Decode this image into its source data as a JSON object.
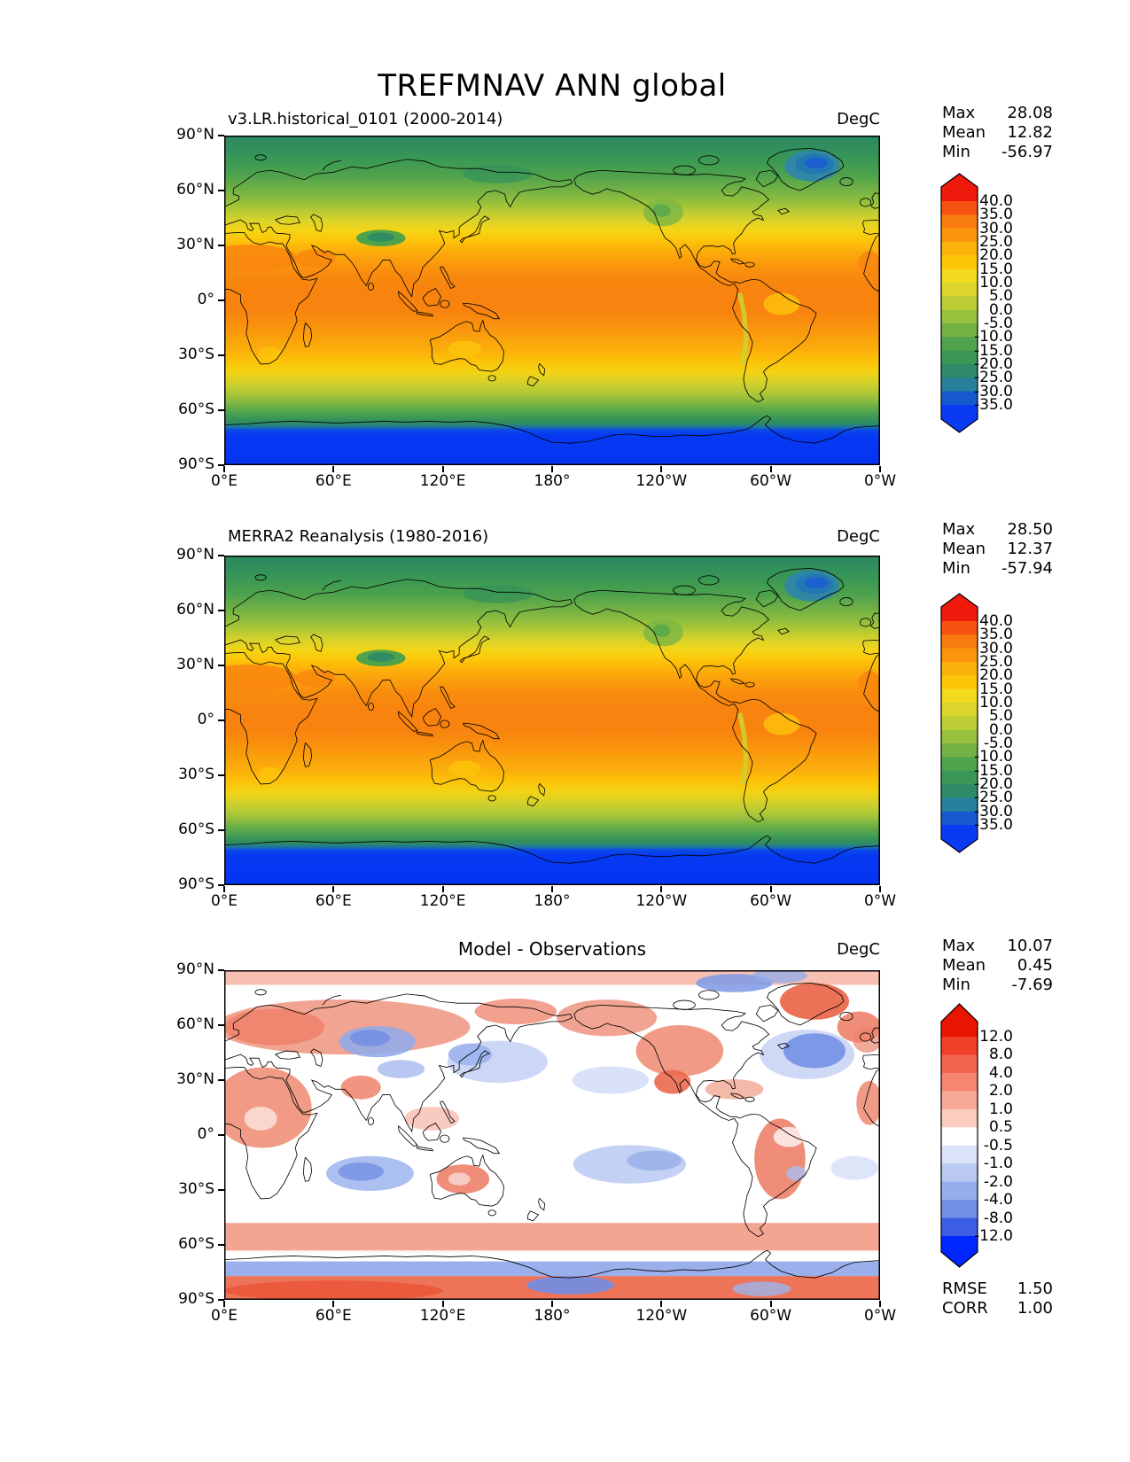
{
  "title": "TREFMNAV ANN global",
  "panels": [
    {
      "subtitle": "v3.LR.historical_0101 (2000-2014)",
      "units": "DegC",
      "stats": [
        {
          "label": "Max",
          "value": "28.08"
        },
        {
          "label": "Mean",
          "value": "12.82"
        },
        {
          "label": "Min",
          "value": "-56.97"
        }
      ],
      "yticks": [
        "90°N",
        "60°N",
        "30°N",
        "0°",
        "30°S",
        "60°S",
        "90°S"
      ],
      "xticks": [
        "0°E",
        "60°E",
        "120°E",
        "180°",
        "120°W",
        "60°W",
        "0°W"
      ],
      "colorbar_ticks": [
        "40.0",
        "35.0",
        "30.0",
        "25.0",
        "20.0",
        "15.0",
        "10.0",
        "5.0",
        "0.0",
        "-5.0",
        "-10.0",
        "-15.0",
        "-20.0",
        "-25.0",
        "-30.0",
        "-35.0"
      ]
    },
    {
      "subtitle": "MERRA2 Reanalysis (1980-2016)",
      "units": "DegC",
      "stats": [
        {
          "label": "Max",
          "value": "28.50"
        },
        {
          "label": "Mean",
          "value": "12.37"
        },
        {
          "label": "Min",
          "value": "-57.94"
        }
      ],
      "yticks": [
        "90°N",
        "60°N",
        "30°N",
        "0°",
        "30°S",
        "60°S",
        "90°S"
      ],
      "xticks": [
        "0°E",
        "60°E",
        "120°E",
        "180°",
        "120°W",
        "60°W",
        "0°W"
      ],
      "colorbar_ticks": [
        "40.0",
        "35.0",
        "30.0",
        "25.0",
        "20.0",
        "15.0",
        "10.0",
        "5.0",
        "0.0",
        "-5.0",
        "-10.0",
        "-15.0",
        "-20.0",
        "-25.0",
        "-30.0",
        "-35.0"
      ]
    },
    {
      "subtitle": "Model - Observations",
      "units": "DegC",
      "stats": [
        {
          "label": "Max",
          "value": "10.07"
        },
        {
          "label": "Mean",
          "value": "0.45"
        },
        {
          "label": "Min",
          "value": "-7.69"
        }
      ],
      "yticks": [
        "90°N",
        "60°N",
        "30°N",
        "0°",
        "30°S",
        "60°S",
        "90°S"
      ],
      "xticks": [
        "0°E",
        "60°E",
        "120°E",
        "180°",
        "120°W",
        "60°W",
        "0°W"
      ],
      "colorbar_ticks": [
        "12.0",
        "8.0",
        "4.0",
        "2.0",
        "1.0",
        "0.5",
        "-0.5",
        "-1.0",
        "-2.0",
        "-4.0",
        "-8.0",
        "-12.0"
      ],
      "extra_stats": [
        {
          "label": "RMSE",
          "value": "1.50"
        },
        {
          "label": "CORR",
          "value": "1.00"
        }
      ]
    }
  ],
  "chart_data": [
    {
      "type": "heatmap",
      "panel": "top",
      "title": "v3.LR.historical_0101 (2000-2014)",
      "units": "DegC",
      "projection": "equirectangular world map, longitude 0°E to 0°W (360°), latitude 90°N to 90°S",
      "x_axis": {
        "ticks": [
          "0°E",
          "60°E",
          "120°E",
          "180°",
          "120°W",
          "60°W",
          "0°W"
        ],
        "range_deg_east": [
          0,
          360
        ]
      },
      "y_axis": {
        "ticks": [
          "90°N",
          "60°N",
          "30°N",
          "0°",
          "30°S",
          "60°S",
          "90°S"
        ],
        "range_lat": [
          -90,
          90
        ]
      },
      "stats": {
        "max": 28.08,
        "mean": 12.82,
        "min": -56.97
      },
      "colorbar": {
        "extend": "both",
        "boundaries": [
          40,
          35,
          30,
          25,
          20,
          15,
          10,
          5,
          0,
          -5,
          -10,
          -15,
          -20,
          -25,
          -30,
          -35
        ],
        "colors": [
          "#f01a0c",
          "#f65310",
          "#f97c0e",
          "#fb960c",
          "#fcb20a",
          "#fdc709",
          "#f2da1e",
          "#dcd52d",
          "#bccd36",
          "#98c23d",
          "#73b245",
          "#50a34d",
          "#3b9755",
          "#2f8a69",
          "#27809c",
          "#1659cf",
          "#0a3af2"
        ]
      },
      "description": "Annual-mean 2m minimum air temperature field: warm orange band in tropics, green mid/high latitudes, deep blue over Antarctica and Greenland."
    },
    {
      "type": "heatmap",
      "panel": "middle",
      "title": "MERRA2 Reanalysis (1980-2016)",
      "units": "DegC",
      "projection": "equirectangular world map, longitude 0°E to 0°W (360°), latitude 90°N to 90°S",
      "x_axis": {
        "ticks": [
          "0°E",
          "60°E",
          "120°E",
          "180°",
          "120°W",
          "60°W",
          "0°W"
        ],
        "range_deg_east": [
          0,
          360
        ]
      },
      "y_axis": {
        "ticks": [
          "90°N",
          "60°N",
          "30°N",
          "0°",
          "30°S",
          "60°S",
          "90°S"
        ],
        "range_lat": [
          -90,
          90
        ]
      },
      "stats": {
        "max": 28.5,
        "mean": 12.37,
        "min": -57.94
      },
      "colorbar": {
        "extend": "both",
        "boundaries": [
          40,
          35,
          30,
          25,
          20,
          15,
          10,
          5,
          0,
          -5,
          -10,
          -15,
          -20,
          -25,
          -30,
          -35
        ],
        "colors": [
          "#f01a0c",
          "#f65310",
          "#f97c0e",
          "#fb960c",
          "#fcb20a",
          "#fdc709",
          "#f2da1e",
          "#dcd52d",
          "#bccd36",
          "#98c23d",
          "#73b245",
          "#50a34d",
          "#3b9755",
          "#2f8a69",
          "#27809c",
          "#1659cf",
          "#0a3af2"
        ]
      },
      "description": "Reanalysis temperature field, visually nearly identical to the model panel."
    },
    {
      "type": "heatmap",
      "panel": "bottom",
      "title": "Model - Observations",
      "units": "DegC",
      "projection": "equirectangular world map, longitude 0°E to 0°W (360°), latitude 90°N to 90°S",
      "x_axis": {
        "ticks": [
          "0°E",
          "60°E",
          "120°E",
          "180°",
          "120°W",
          "60°W",
          "0°W"
        ],
        "range_deg_east": [
          0,
          360
        ]
      },
      "y_axis": {
        "ticks": [
          "90°N",
          "60°N",
          "30°N",
          "0°",
          "30°S",
          "60°S",
          "90°S"
        ],
        "range_lat": [
          -90,
          90
        ]
      },
      "stats": {
        "max": 10.07,
        "mean": 0.45,
        "min": -7.69
      },
      "metrics": {
        "RMSE": 1.5,
        "CORR": 1.0
      },
      "colorbar": {
        "extend": "both",
        "boundaries": [
          12,
          8,
          4,
          2,
          1,
          0.5,
          -0.5,
          -1,
          -2,
          -4,
          -8,
          -12
        ],
        "colors": [
          "#ea1500",
          "#ef4028",
          "#f26450",
          "#f58672",
          "#f7a896",
          "#fbccc0",
          "#ffffff",
          "#dbe3f8",
          "#bac9f2",
          "#96afec",
          "#7090e6",
          "#3c5ee2",
          "#0026ff"
        ]
      },
      "description": "Difference map: warm (red) bias over most continents, Greenland, Southern Ocean 45-60S and Antarctic interior; cool (blue) bias over central Asia, NW Pacific, NW Atlantic, subtropical southern oceans and the Antarctic coastal ring."
    }
  ]
}
